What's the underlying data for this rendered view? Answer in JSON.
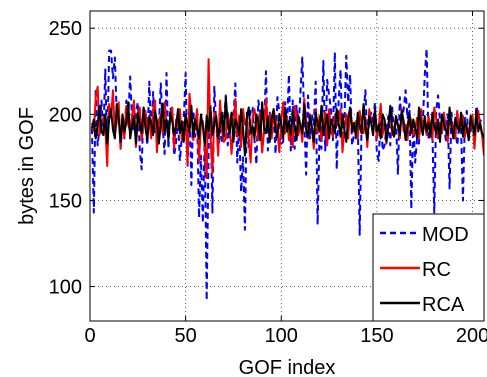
{
  "chart_data": {
    "type": "line",
    "title": "",
    "xlabel": "GOF index",
    "ylabel": "bytes in GOF",
    "xlim": [
      0,
      206
    ],
    "ylim": [
      80,
      260
    ],
    "xticks": [
      0,
      50,
      100,
      150,
      200
    ],
    "xtick_labels": [
      "0",
      "50",
      "100",
      "150",
      "200"
    ],
    "yticks": [
      100,
      150,
      200,
      250
    ],
    "ytick_labels": [
      "100",
      "150",
      "200",
      "250"
    ],
    "grid": true,
    "legend_position": "bottom-right",
    "series": [
      {
        "name": "MOD",
        "color": "#0000ff",
        "dash": "dashed",
        "values": [
          192,
          143,
          215,
          182,
          192,
          208,
          188,
          226,
          176,
          237,
          237,
          221,
          233,
          199,
          201,
          180,
          196,
          186,
          208,
          198,
          222,
          197,
          190,
          201,
          207,
          180,
          168,
          205,
          193,
          182,
          219,
          186,
          213,
          188,
          191,
          192,
          218,
          193,
          177,
          224,
          180,
          204,
          199,
          176,
          184,
          197,
          173,
          187,
          196,
          224,
          169,
          206,
          159,
          202,
          187,
          200,
          140,
          176,
          137,
          190,
          92,
          179,
          205,
          143,
          216,
          194,
          178,
          191,
          184,
          196,
          211,
          182,
          193,
          200,
          198,
          218,
          172,
          194,
          155,
          175,
          133,
          201,
          180,
          204,
          204,
          185,
          171,
          208,
          201,
          178,
          190,
          225,
          179,
          201,
          191,
          201,
          177,
          210,
          201,
          183,
          184,
          207,
          193,
          223,
          179,
          208,
          180,
          205,
          190,
          212,
          233,
          199,
          165,
          211,
          186,
          200,
          194,
          219,
          136,
          189,
          180,
          231,
          179,
          220,
          211,
          203,
          185,
          236,
          168,
          208,
          226,
          182,
          196,
          234,
          207,
          223,
          182,
          188,
          186,
          197,
          130,
          195,
          200,
          214,
          183,
          196,
          201,
          195,
          207,
          177,
          173,
          203,
          179,
          182,
          192,
          199,
          182,
          204,
          188,
          196,
          165,
          210,
          195,
          203,
          214,
          198,
          206,
          145,
          197,
          172,
          186,
          183,
          201,
          195,
          222,
          238,
          185,
          192,
          190,
          143,
          202,
          211,
          197,
          194,
          196,
          185,
          200,
          157,
          201,
          185,
          192,
          182,
          193,
          192,
          150,
          197,
          202,
          185,
          190,
          196,
          181,
          205,
          199,
          196,
          197
        ]
      },
      {
        "name": "RC",
        "color": "#ff0000",
        "dash": "solid",
        "values": [
          195,
          190,
          210,
          216,
          188,
          195,
          198,
          193,
          170,
          206,
          198,
          214,
          188,
          196,
          207,
          180,
          196,
          187,
          205,
          194,
          190,
          199,
          208,
          181,
          196,
          204,
          185,
          195,
          202,
          190,
          198,
          186,
          203,
          208,
          178,
          196,
          200,
          189,
          207,
          195,
          187,
          197,
          204,
          180,
          197,
          193,
          203,
          185,
          192,
          199,
          171,
          212,
          201,
          185,
          194,
          203,
          172,
          195,
          196,
          183,
          163,
          232,
          188,
          166,
          201,
          198,
          176,
          208,
          191,
          184,
          186,
          201,
          194,
          177,
          191,
          209,
          187,
          199,
          181,
          203,
          194,
          197,
          186,
          172,
          198,
          203,
          195,
          185,
          201,
          178,
          190,
          209,
          192,
          200,
          186,
          203,
          197,
          190,
          178,
          196,
          207,
          189,
          199,
          185,
          193,
          181,
          205,
          199,
          188,
          195,
          184,
          209,
          196,
          186,
          200,
          192,
          180,
          203,
          189,
          199,
          185,
          193,
          201,
          182,
          203,
          190,
          187,
          199,
          194,
          196,
          203,
          178,
          191,
          200,
          186,
          204,
          195,
          190,
          196,
          186,
          202,
          194,
          189,
          198,
          181,
          203,
          196,
          188,
          201,
          186,
          193,
          206,
          188,
          197,
          183,
          194,
          202,
          188,
          192,
          199,
          193,
          186,
          203,
          190,
          194,
          185,
          200,
          196,
          188,
          192,
          198,
          186,
          203,
          191,
          195,
          188,
          199,
          192,
          185,
          204,
          197,
          186,
          195,
          189,
          201,
          193,
          184,
          198,
          195,
          190,
          186,
          202,
          190,
          196,
          199,
          187,
          194,
          188,
          192,
          200,
          180,
          196,
          202,
          193,
          188,
          176
        ]
      },
      {
        "name": "RCA",
        "color": "#000000",
        "dash": "solid",
        "values": [
          192,
          197,
          186,
          194,
          205,
          190,
          188,
          200,
          183,
          197,
          203,
          191,
          186,
          206,
          197,
          184,
          200,
          190,
          195,
          207,
          186,
          193,
          199,
          183,
          201,
          194,
          189,
          204,
          192,
          185,
          199,
          195,
          188,
          202,
          196,
          183,
          194,
          206,
          190,
          197,
          185,
          201,
          196,
          188,
          193,
          203,
          189,
          196,
          184,
          200,
          194,
          190,
          205,
          187,
          197,
          192,
          186,
          200,
          193,
          182,
          199,
          190,
          204,
          188,
          195,
          199,
          186,
          193,
          201,
          187,
          210,
          195,
          189,
          201,
          184,
          197,
          194,
          188,
          203,
          192,
          176,
          198,
          204,
          189,
          193,
          186,
          200,
          196,
          185,
          207,
          192,
          189,
          199,
          184,
          198,
          203,
          191,
          187,
          200,
          195,
          186,
          204,
          190,
          196,
          188,
          202,
          193,
          185,
          199,
          194,
          189,
          206,
          191,
          187,
          199,
          193,
          184,
          201,
          195,
          190,
          205,
          188,
          194,
          200,
          186,
          197,
          193,
          189,
          203,
          195,
          187,
          200,
          191,
          184,
          198,
          204,
          190,
          195,
          187,
          201,
          193,
          189,
          206,
          192,
          185,
          199,
          195,
          188,
          203,
          190,
          194,
          186,
          200,
          197,
          184,
          193,
          205,
          191,
          187,
          199,
          194,
          188,
          202,
          196,
          185,
          193,
          200,
          189,
          197,
          192,
          186,
          204,
          194,
          188,
          199,
          190,
          195,
          187,
          201,
          193,
          189,
          197,
          184,
          200,
          195,
          191,
          188,
          204,
          192,
          186,
          198,
          193,
          190,
          201,
          187,
          196,
          192,
          185,
          199,
          194,
          188,
          202,
          190,
          195,
          189,
          186
        ]
      }
    ]
  }
}
